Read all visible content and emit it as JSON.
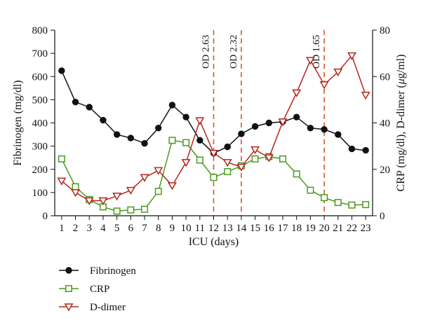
{
  "chart_data": {
    "type": "line",
    "x": [
      1,
      2,
      3,
      4,
      5,
      6,
      7,
      8,
      9,
      10,
      11,
      12,
      13,
      14,
      15,
      16,
      17,
      18,
      19,
      20,
      21,
      22,
      23
    ],
    "xlabel": "ICU (days)",
    "ylabel_left": "Fibrinogen (mg/dl)",
    "ylabel_right": "CRP (mg/dl), D-dimer (μg/ml)",
    "ylim_left": [
      0,
      800
    ],
    "ylim_right": [
      0,
      80
    ],
    "yticks_left": [
      0,
      100,
      200,
      300,
      400,
      500,
      600,
      700,
      800
    ],
    "yticks_right": [
      0,
      20,
      40,
      60,
      80
    ],
    "xlim": [
      0.5,
      23.5
    ],
    "grid": false,
    "legend_position": "bottom-left",
    "series": [
      {
        "name": "Fibrinogen",
        "axis": "left",
        "marker": "filled-circle",
        "color": "#111111",
        "values": [
          625,
          490,
          468,
          412,
          350,
          335,
          312,
          378,
          477,
          425,
          325,
          270,
          297,
          353,
          385,
          400,
          405,
          425,
          378,
          372,
          350,
          288,
          282
        ]
      },
      {
        "name": "CRP",
        "axis": "right",
        "marker": "open-square",
        "color": "#4a9a1e",
        "values": [
          24.5,
          12.5,
          7,
          3.8,
          2,
          2.5,
          2.8,
          10.5,
          32.5,
          31.5,
          24,
          16.5,
          19,
          21.5,
          24.5,
          25.5,
          24.5,
          18,
          11,
          7.8,
          5.7,
          4.6,
          4.8
        ]
      },
      {
        "name": "D-dimer",
        "axis": "right",
        "marker": "open-triangle-down",
        "color": "#b5261c",
        "values": [
          15,
          10,
          6.5,
          6.5,
          8.5,
          11,
          16.5,
          19.5,
          13,
          23,
          41,
          27,
          23,
          21,
          28.5,
          25,
          40.5,
          53,
          67,
          56.5,
          62,
          69,
          52
        ]
      }
    ],
    "vlines": [
      {
        "x": 12,
        "label": "OD 2.63",
        "color": "#d9542b"
      },
      {
        "x": 14,
        "label": "OD 2.32",
        "color": "#d9542b"
      },
      {
        "x": 20,
        "label": "OD 1.65",
        "color": "#d9542b"
      }
    ]
  }
}
